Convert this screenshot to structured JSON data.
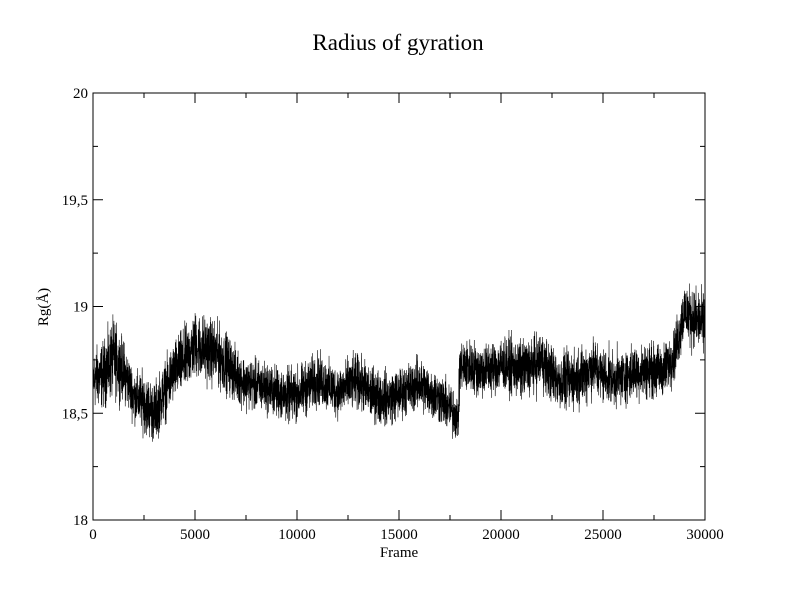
{
  "chart_data": {
    "type": "line",
    "title": "Radius of gyration",
    "xlabel": "Frame",
    "ylabel": "Rg(Å)",
    "xlim": [
      0,
      30000
    ],
    "ylim": [
      18,
      20
    ],
    "x_ticks": [
      0,
      5000,
      10000,
      15000,
      20000,
      25000,
      30000
    ],
    "x_tick_labels": [
      "0",
      "5000",
      "10000",
      "15000",
      "20000",
      "25000",
      "30000"
    ],
    "y_ticks": [
      18,
      18.5,
      19,
      19.5,
      20
    ],
    "y_tick_labels": [
      "18",
      "18,5",
      "19",
      "19,5",
      "20"
    ],
    "grid": false,
    "legend": "none",
    "line_color": "#000000",
    "series": [
      {
        "x": [
          0,
          500,
          1000,
          1500,
          2000,
          2500,
          3000,
          3500,
          4000,
          4500,
          5000,
          5500,
          6000,
          6500,
          7000,
          7500,
          8000,
          8500,
          9000,
          9500,
          10000,
          10500,
          11000,
          11500,
          12000,
          12500,
          13000,
          13500,
          14000,
          14500,
          15000,
          15500,
          16000,
          16500,
          17000,
          17500,
          17900,
          18000,
          18500,
          19000,
          19500,
          20000,
          20500,
          21000,
          21500,
          22000,
          22500,
          23000,
          23500,
          24000,
          24500,
          25000,
          25500,
          26000,
          26500,
          27000,
          27500,
          28000,
          28500,
          29000,
          29500,
          30000
        ],
        "values": [
          18.66,
          18.68,
          18.76,
          18.7,
          18.58,
          18.55,
          18.5,
          18.6,
          18.7,
          18.75,
          18.82,
          18.8,
          18.78,
          18.74,
          18.68,
          18.64,
          18.63,
          18.62,
          18.6,
          18.58,
          18.59,
          18.62,
          18.66,
          18.63,
          18.6,
          18.63,
          18.65,
          18.6,
          18.58,
          18.57,
          18.59,
          18.62,
          18.64,
          18.6,
          18.57,
          18.52,
          18.48,
          18.72,
          18.72,
          18.7,
          18.71,
          18.73,
          18.72,
          18.7,
          18.72,
          18.75,
          18.68,
          18.64,
          18.66,
          18.68,
          18.72,
          18.68,
          18.66,
          18.67,
          18.69,
          18.7,
          18.7,
          18.7,
          18.78,
          18.98,
          18.94,
          18.92
        ],
        "spread": [
          0.2,
          0.22,
          0.26,
          0.2,
          0.17,
          0.2,
          0.2,
          0.2,
          0.2,
          0.22,
          0.22,
          0.22,
          0.22,
          0.2,
          0.18,
          0.17,
          0.17,
          0.17,
          0.17,
          0.18,
          0.18,
          0.18,
          0.18,
          0.17,
          0.17,
          0.18,
          0.18,
          0.18,
          0.18,
          0.18,
          0.17,
          0.17,
          0.18,
          0.17,
          0.17,
          0.17,
          0.16,
          0.18,
          0.18,
          0.18,
          0.18,
          0.18,
          0.19,
          0.2,
          0.19,
          0.2,
          0.19,
          0.19,
          0.2,
          0.2,
          0.2,
          0.18,
          0.18,
          0.18,
          0.18,
          0.18,
          0.18,
          0.18,
          0.18,
          0.2,
          0.2,
          0.2
        ]
      }
    ]
  }
}
